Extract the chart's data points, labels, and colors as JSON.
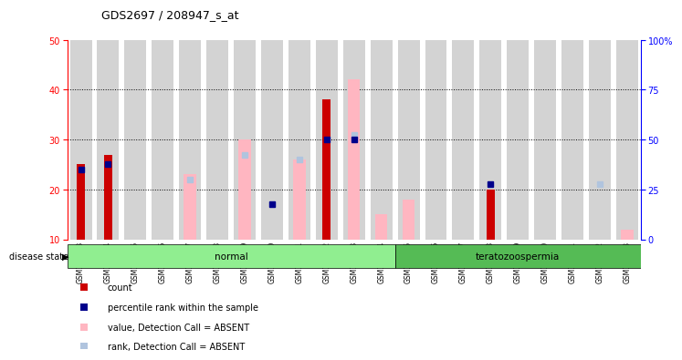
{
  "title": "GDS2697 / 208947_s_at",
  "samples": [
    "GSM158463",
    "GSM158464",
    "GSM158465",
    "GSM158466",
    "GSM158467",
    "GSM158468",
    "GSM158469",
    "GSM158470",
    "GSM158471",
    "GSM158472",
    "GSM158473",
    "GSM158474",
    "GSM158475",
    "GSM158476",
    "GSM158477",
    "GSM158478",
    "GSM158479",
    "GSM158480",
    "GSM158481",
    "GSM158482",
    "GSM158483"
  ],
  "count": [
    25,
    27,
    0,
    0,
    0,
    0,
    0,
    0,
    0,
    38,
    0,
    0,
    0,
    0,
    0,
    20,
    0,
    0,
    0,
    0,
    0
  ],
  "percentile_rank": [
    24,
    25,
    10,
    10,
    10,
    10,
    10,
    17,
    10,
    30,
    30,
    10,
    10,
    10,
    10,
    21,
    10,
    10,
    10,
    10,
    10
  ],
  "value_absent": [
    0,
    0,
    0,
    0,
    23,
    0,
    30,
    10,
    26,
    0,
    42,
    15,
    18,
    0,
    0,
    0,
    0,
    0,
    0,
    0,
    12
  ],
  "rank_absent": [
    0,
    0,
    0,
    0,
    22,
    0,
    27,
    17,
    26,
    0,
    31,
    0,
    0,
    0,
    0,
    0,
    0,
    0,
    0,
    21,
    0
  ],
  "disease_state_groups": [
    {
      "label": "normal",
      "start": 0,
      "end": 12,
      "color": "#90EE90"
    },
    {
      "label": "teratozoospermia",
      "start": 12,
      "end": 21,
      "color": "#55BB55"
    }
  ],
  "ylim_left": [
    10,
    50
  ],
  "ylim_right": [
    0,
    100
  ],
  "yticks_left": [
    10,
    20,
    30,
    40,
    50
  ],
  "yticks_right": [
    0,
    25,
    50,
    75,
    100
  ],
  "color_count": "#cc0000",
  "color_percentile": "#00008B",
  "color_value_absent": "#FFB6C1",
  "color_rank_absent": "#B0C4DE",
  "bar_bg": "#D3D3D3",
  "legend_items": [
    {
      "label": "count",
      "color": "#cc0000"
    },
    {
      "label": "percentile rank within the sample",
      "color": "#00008B"
    },
    {
      "label": "value, Detection Call = ABSENT",
      "color": "#FFB6C1"
    },
    {
      "label": "rank, Detection Call = ABSENT",
      "color": "#B0C4DE"
    }
  ]
}
